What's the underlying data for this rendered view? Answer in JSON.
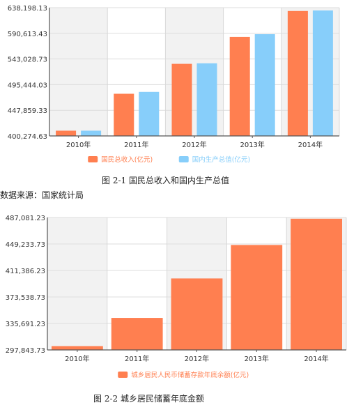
{
  "chart_data": [
    {
      "type": "bar",
      "categories": [
        "2010年",
        "2011年",
        "2012年",
        "2013年",
        "2014年"
      ],
      "series": [
        {
          "name": "国民总收入(亿元)",
          "values": [
            410000,
            478500,
            534000,
            584000,
            632000
          ],
          "color": "#ff7f50"
        },
        {
          "name": "国内生产总值(亿元)",
          "values": [
            410000,
            482000,
            535000,
            589000,
            633000
          ],
          "color": "#87cefa"
        }
      ],
      "ylim": [
        400274.63,
        638198.13
      ],
      "yticks": [
        "638,198.13",
        "590,613.43",
        "543,028.73",
        "495,444.03",
        "447,859.33",
        "400,274.63"
      ],
      "grid": true,
      "legend_position": "bottom"
    },
    {
      "type": "bar",
      "categories": [
        "2010年",
        "2011年",
        "2012年",
        "2013年",
        "2014年"
      ],
      "series": [
        {
          "name": "城乡居民人民币储蓄存款年底余额(亿元)",
          "values": [
            303300,
            343600,
            400000,
            447800,
            485300
          ],
          "color": "#ff7f50"
        }
      ],
      "ylim": [
        297843.73,
        487081.23
      ],
      "yticks": [
        "487,081.23",
        "449,233.73",
        "411,386.23",
        "373,538.73",
        "335,691.23",
        "297,843.73"
      ],
      "grid": true,
      "legend_position": "bottom"
    }
  ],
  "figure1_caption": "图 2-1 国民总收入和国内生产总值",
  "source_note": "数据来源：国家统计局",
  "figure2_caption": "图 2-2 城乡居民储蓄年底金额"
}
